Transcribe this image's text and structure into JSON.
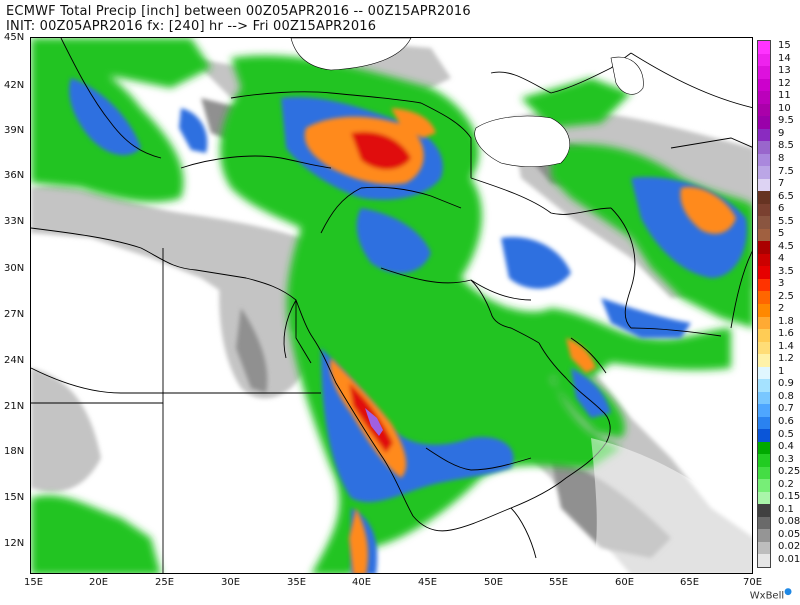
{
  "header": {
    "line1": "ECMWF Total Precip [inch] between 00Z05APR2016 -- 00Z15APR2016",
    "line2": "INIT: 00Z05APR2016 fx: [240] hr --> Fri 00Z15APR2016"
  },
  "axes": {
    "lat_labels": [
      "45N",
      "42N",
      "39N",
      "36N",
      "33N",
      "30N",
      "27N",
      "24N",
      "21N",
      "18N",
      "15N",
      "12N"
    ],
    "lon_labels": [
      "15E",
      "20E",
      "25E",
      "30E",
      "35E",
      "40E",
      "45E",
      "50E",
      "55E",
      "60E",
      "65E",
      "70E"
    ]
  },
  "legend": {
    "labels": [
      "15",
      "14",
      "13",
      "12",
      "11",
      "10",
      "9.5",
      "9",
      "8.5",
      "8",
      "7.5",
      "7",
      "6.5",
      "6",
      "5.5",
      "5",
      "4.5",
      "4",
      "3.5",
      "3",
      "2.5",
      "2",
      "1.8",
      "1.6",
      "1.4",
      "1.2",
      "1",
      "0.9",
      "0.8",
      "0.7",
      "0.6",
      "0.5",
      "0.4",
      "0.3",
      "0.25",
      "0.2",
      "0.15",
      "0.1",
      "0.08",
      "0.05",
      "0.02",
      "0.01"
    ],
    "colors": [
      "#ff33ff",
      "#ee22ee",
      "#dd11dd",
      "#cc00cc",
      "#bb00bb",
      "#aa00aa",
      "#9a00aa",
      "#8a2bc0",
      "#9966cc",
      "#aa88dd",
      "#bba6e6",
      "#ddd3f3",
      "#663322",
      "#7a4030",
      "#8a5540",
      "#a06040",
      "#aa0000",
      "#cc0000",
      "#e60000",
      "#ff3300",
      "#ff6600",
      "#ff8800",
      "#ffaa33",
      "#ffcc55",
      "#ffdd77",
      "#fff2a8",
      "#e0f7ff",
      "#a5e2ff",
      "#79c7ff",
      "#4ea6ff",
      "#2a82f0",
      "#0a55d8",
      "#00aa00",
      "#22cc22",
      "#44dd44",
      "#77ee77",
      "#aaf5aa",
      "#404040",
      "#6a6a6a",
      "#959595",
      "#bdbdbd",
      "#e6e6e6"
    ]
  },
  "branding": {
    "name": "WxBell"
  },
  "colors": {
    "land_none": "#ffffff",
    "light_gray": "#c4c4c4",
    "mid_gray": "#909090",
    "dark_gray": "#5a5a5a",
    "light_green": "#7de27d",
    "green": "#22c422",
    "blue": "#2f6fe0",
    "light_blue": "#7fc3ff",
    "yellow": "#fff07a",
    "orange": "#ff8a1e",
    "red": "#e01010",
    "dark_red": "#9a0000",
    "purple": "#a060e0",
    "boundary": "#000000"
  }
}
